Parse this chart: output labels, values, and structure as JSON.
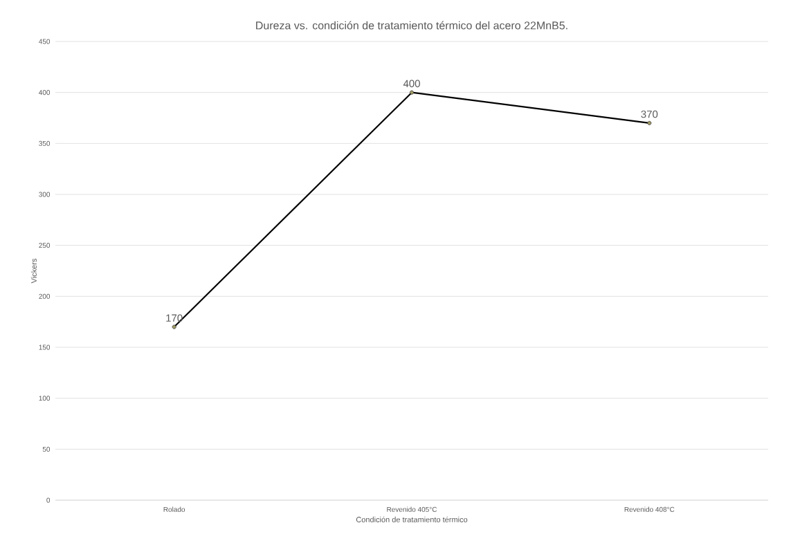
{
  "chart_data": {
    "type": "line",
    "title": "Dureza vs. condición de tratamiento térmico del acero 22MnB5.",
    "xlabel": "Condición de tratamiento térmico",
    "ylabel": "Vickers",
    "categories": [
      "Rolado",
      "Revenido 405°C",
      "Revenido 408°C"
    ],
    "values": [
      170,
      400,
      370
    ],
    "color": "#000000",
    "ylim": [
      0,
      450
    ],
    "yticks": [
      0,
      50,
      100,
      150,
      200,
      250,
      300,
      350,
      400,
      450
    ],
    "grid": "y",
    "marker": "circle",
    "line_style": "solid",
    "data_labels": true
  }
}
